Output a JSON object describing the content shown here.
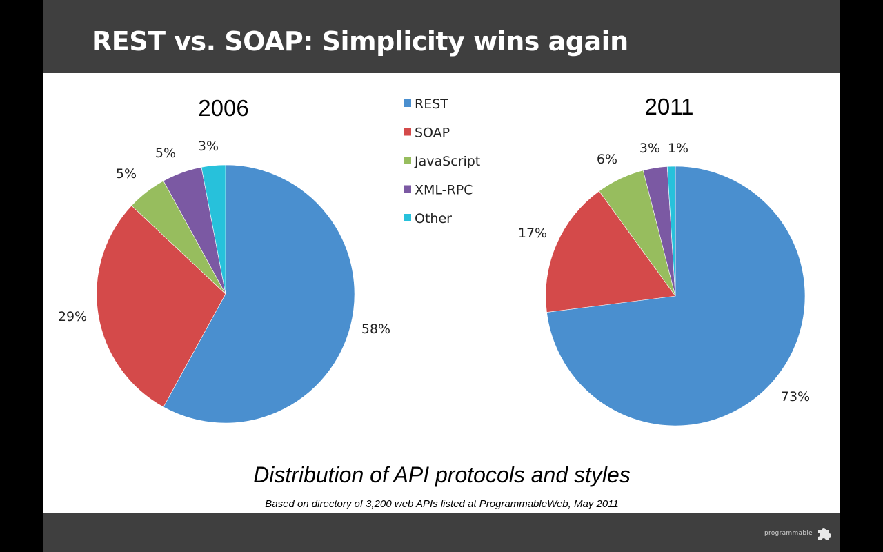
{
  "slide": {
    "title": "REST vs. SOAP: Simplicity wins again",
    "caption": "Distribution of API protocols and styles",
    "source_note": "Based on directory of 3,200 web APIs listed at ProgrammableWeb, May 2011",
    "footer_logo_text": "programmable"
  },
  "colors": {
    "title_bar": "#3f3f3f",
    "REST": "#4a8fcf",
    "SOAP": "#d44a4a",
    "JavaScript": "#97bd5e",
    "XML-RPC": "#7b59a3",
    "Other": "#27c1db"
  },
  "chart_data": [
    {
      "type": "pie",
      "title": "2006",
      "categories": [
        "REST",
        "SOAP",
        "JavaScript",
        "XML-RPC",
        "Other"
      ],
      "values": [
        58,
        29,
        5,
        5,
        3
      ],
      "labels": [
        "58%",
        "29%",
        "5%",
        "5%",
        "3%"
      ],
      "legend": "top-center"
    },
    {
      "type": "pie",
      "title": "2011",
      "categories": [
        "REST",
        "SOAP",
        "JavaScript",
        "XML-RPC",
        "Other"
      ],
      "values": [
        73,
        17,
        6,
        3,
        1
      ],
      "labels": [
        "73%",
        "17%",
        "6%",
        "3%",
        "1%"
      ],
      "legend": "top-center"
    }
  ]
}
